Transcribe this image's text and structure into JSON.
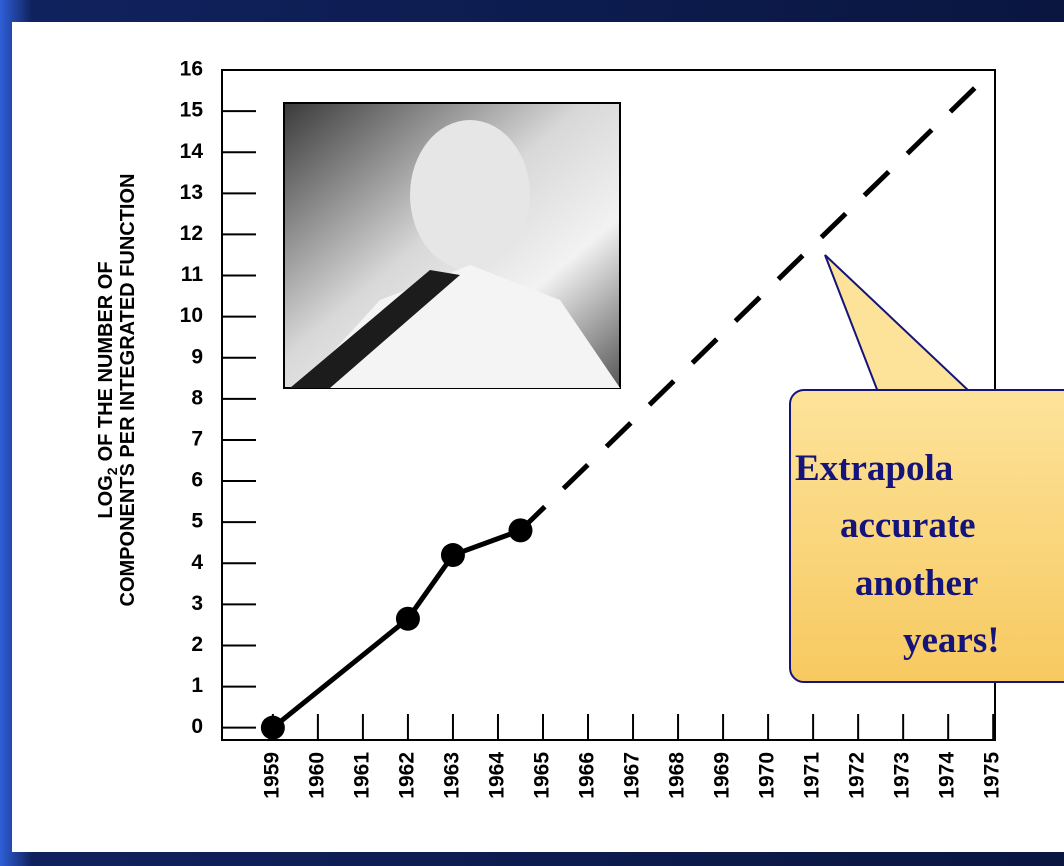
{
  "chart_data": {
    "type": "line",
    "y_label": {
      "prefix": "LOG",
      "subscript": "2",
      "rest": "OF THE NUMBER OF",
      "line2": "COMPONENTS PER INTEGRATED FUNCTION"
    },
    "series": [
      {
        "x": [
          1959,
          1962,
          1963,
          1964.5
        ],
        "values": [
          0,
          2.65,
          4.2,
          4.8
        ],
        "color": "#000000",
        "dashed": false,
        "markers": true
      },
      {
        "x": [
          1964.5,
          1975
        ],
        "values": [
          4.8,
          16
        ],
        "color": "#000000",
        "dashed": true,
        "markers": false
      }
    ],
    "xlim": [
      1957.87,
      1975.04
    ],
    "ylim": [
      -0.3,
      16
    ],
    "xticks": [
      1959,
      1960,
      1961,
      1962,
      1963,
      1964,
      1965,
      1966,
      1967,
      1968,
      1969,
      1970,
      1971,
      1972,
      1973,
      1974,
      1975
    ],
    "yticks": [
      0,
      1,
      2,
      3,
      4,
      5,
      6,
      7,
      8,
      9,
      10,
      11,
      12,
      13,
      14,
      15,
      16
    ],
    "callout": [
      "Extrapola",
      "accurate",
      "another",
      "years!"
    ]
  }
}
